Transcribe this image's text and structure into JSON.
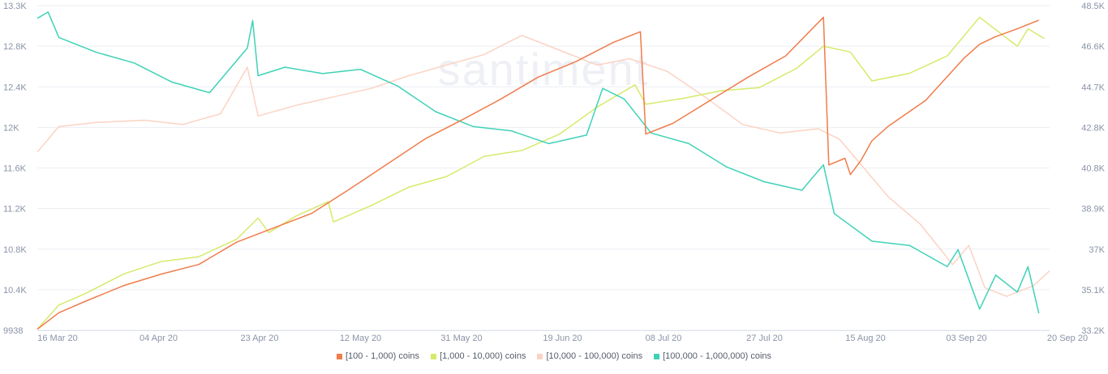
{
  "watermark": "santiment",
  "chart_data": {
    "type": "line",
    "x_ticks": [
      "16 Mar 20",
      "04 Apr 20",
      "23 Apr 20",
      "12 May 20",
      "31 May 20",
      "19 Jun 20",
      "08 Jul 20",
      "27 Jul 20",
      "15 Aug 20",
      "03 Sep 20",
      "20 Sep 20"
    ],
    "x_range": [
      "2020-03-16",
      "2020-09-20"
    ],
    "left_axis": {
      "ticks": [
        "13.3K",
        "12.8K",
        "12.4K",
        "12K",
        "11.6K",
        "11.2K",
        "10.8K",
        "10.4K",
        "9938"
      ],
      "range": [
        9938,
        13300
      ]
    },
    "right_axis": {
      "ticks": [
        "48.5K",
        "46.6K",
        "44.7K",
        "42.8K",
        "40.8K",
        "38.9K",
        "37K",
        "35.1K",
        "33.2K"
      ],
      "range": [
        33200,
        48500
      ]
    },
    "grid": true,
    "legend_position": "bottom",
    "series": [
      {
        "name": "[100 - 1,000) coins",
        "color": "#f07c4b",
        "axis": "left",
        "points": [
          [
            "2020-03-16",
            9950
          ],
          [
            "2020-03-20",
            10120
          ],
          [
            "2020-03-25",
            10240
          ],
          [
            "2020-04-01",
            10400
          ],
          [
            "2020-04-08",
            10520
          ],
          [
            "2020-04-15",
            10620
          ],
          [
            "2020-04-22",
            10850
          ],
          [
            "2020-04-29",
            11000
          ],
          [
            "2020-05-06",
            11150
          ],
          [
            "2020-05-13",
            11400
          ],
          [
            "2020-05-20",
            11660
          ],
          [
            "2020-05-27",
            11920
          ],
          [
            "2020-06-03",
            12120
          ],
          [
            "2020-06-10",
            12330
          ],
          [
            "2020-06-17",
            12560
          ],
          [
            "2020-06-24",
            12720
          ],
          [
            "2020-07-01",
            12920
          ],
          [
            "2020-07-06",
            13030
          ],
          [
            "2020-07-07",
            11970
          ],
          [
            "2020-07-12",
            12080
          ],
          [
            "2020-07-19",
            12320
          ],
          [
            "2020-07-26",
            12560
          ],
          [
            "2020-08-02",
            12780
          ],
          [
            "2020-08-09",
            13180
          ],
          [
            "2020-08-10",
            11650
          ],
          [
            "2020-08-13",
            11720
          ],
          [
            "2020-08-14",
            11550
          ],
          [
            "2020-08-16",
            11700
          ],
          [
            "2020-08-18",
            11900
          ],
          [
            "2020-08-21",
            12050
          ],
          [
            "2020-08-28",
            12320
          ],
          [
            "2020-09-04",
            12750
          ],
          [
            "2020-09-07",
            12900
          ],
          [
            "2020-09-10",
            12980
          ],
          [
            "2020-09-14",
            13060
          ],
          [
            "2020-09-18",
            13150
          ]
        ]
      },
      {
        "name": "[1,000 - 10,000) coins",
        "color": "#d6ea6a",
        "axis": "left",
        "points": [
          [
            "2020-03-16",
            9950
          ],
          [
            "2020-03-20",
            10200
          ],
          [
            "2020-03-25",
            10320
          ],
          [
            "2020-04-01",
            10520
          ],
          [
            "2020-04-08",
            10650
          ],
          [
            "2020-04-15",
            10700
          ],
          [
            "2020-04-22",
            10880
          ],
          [
            "2020-04-26",
            11100
          ],
          [
            "2020-04-28",
            10950
          ],
          [
            "2020-05-03",
            11120
          ],
          [
            "2020-05-09",
            11270
          ],
          [
            "2020-05-10",
            11060
          ],
          [
            "2020-05-17",
            11230
          ],
          [
            "2020-05-24",
            11420
          ],
          [
            "2020-05-31",
            11530
          ],
          [
            "2020-06-07",
            11740
          ],
          [
            "2020-06-14",
            11800
          ],
          [
            "2020-06-21",
            11970
          ],
          [
            "2020-06-28",
            12250
          ],
          [
            "2020-07-05",
            12480
          ],
          [
            "2020-07-07",
            12280
          ],
          [
            "2020-07-14",
            12340
          ],
          [
            "2020-07-21",
            12420
          ],
          [
            "2020-07-28",
            12450
          ],
          [
            "2020-08-04",
            12650
          ],
          [
            "2020-08-09",
            12880
          ],
          [
            "2020-08-14",
            12820
          ],
          [
            "2020-08-18",
            12520
          ],
          [
            "2020-08-25",
            12600
          ],
          [
            "2020-09-01",
            12780
          ],
          [
            "2020-09-07",
            13180
          ],
          [
            "2020-09-14",
            12880
          ],
          [
            "2020-09-16",
            13060
          ],
          [
            "2020-09-19",
            12960
          ]
        ]
      },
      {
        "name": "[10,000 - 100,000) coins",
        "color": "#fbd3c3",
        "axis": "right",
        "points": [
          [
            "2020-03-16",
            41600
          ],
          [
            "2020-03-20",
            42800
          ],
          [
            "2020-03-27",
            43000
          ],
          [
            "2020-04-05",
            43100
          ],
          [
            "2020-04-12",
            42900
          ],
          [
            "2020-04-19",
            43400
          ],
          [
            "2020-04-24",
            45600
          ],
          [
            "2020-04-26",
            43300
          ],
          [
            "2020-05-03",
            43800
          ],
          [
            "2020-05-10",
            44200
          ],
          [
            "2020-05-17",
            44600
          ],
          [
            "2020-05-24",
            45200
          ],
          [
            "2020-05-31",
            45700
          ],
          [
            "2020-06-07",
            46200
          ],
          [
            "2020-06-14",
            47100
          ],
          [
            "2020-06-21",
            46400
          ],
          [
            "2020-06-28",
            45700
          ],
          [
            "2020-07-04",
            46000
          ],
          [
            "2020-07-11",
            45400
          ],
          [
            "2020-07-18",
            44200
          ],
          [
            "2020-07-25",
            42900
          ],
          [
            "2020-08-01",
            42500
          ],
          [
            "2020-08-08",
            42700
          ],
          [
            "2020-08-12",
            42200
          ],
          [
            "2020-08-16",
            41000
          ],
          [
            "2020-08-21",
            39500
          ],
          [
            "2020-08-27",
            38200
          ],
          [
            "2020-09-02",
            36300
          ],
          [
            "2020-09-05",
            37200
          ],
          [
            "2020-09-08",
            35200
          ],
          [
            "2020-09-12",
            34800
          ],
          [
            "2020-09-17",
            35300
          ],
          [
            "2020-09-20",
            36000
          ]
        ]
      },
      {
        "name": "[100,000  - 1,000,000) coins",
        "color": "#3fd2b7",
        "axis": "right",
        "points": [
          [
            "2020-03-16",
            47900
          ],
          [
            "2020-03-18",
            48200
          ],
          [
            "2020-03-20",
            47000
          ],
          [
            "2020-03-27",
            46300
          ],
          [
            "2020-04-03",
            45800
          ],
          [
            "2020-04-10",
            44900
          ],
          [
            "2020-04-17",
            44400
          ],
          [
            "2020-04-24",
            46500
          ],
          [
            "2020-04-25",
            47800
          ],
          [
            "2020-04-26",
            45200
          ],
          [
            "2020-05-01",
            45600
          ],
          [
            "2020-05-08",
            45300
          ],
          [
            "2020-05-15",
            45500
          ],
          [
            "2020-05-22",
            44700
          ],
          [
            "2020-05-29",
            43500
          ],
          [
            "2020-06-05",
            42800
          ],
          [
            "2020-06-12",
            42600
          ],
          [
            "2020-06-19",
            42000
          ],
          [
            "2020-06-26",
            42400
          ],
          [
            "2020-06-29",
            44600
          ],
          [
            "2020-07-03",
            44100
          ],
          [
            "2020-07-08",
            42500
          ],
          [
            "2020-07-15",
            42000
          ],
          [
            "2020-07-22",
            40900
          ],
          [
            "2020-07-29",
            40200
          ],
          [
            "2020-08-05",
            39800
          ],
          [
            "2020-08-09",
            41000
          ],
          [
            "2020-08-11",
            38700
          ],
          [
            "2020-08-18",
            37400
          ],
          [
            "2020-08-25",
            37200
          ],
          [
            "2020-09-01",
            36200
          ],
          [
            "2020-09-03",
            37000
          ],
          [
            "2020-09-07",
            34200
          ],
          [
            "2020-09-10",
            35800
          ],
          [
            "2020-09-14",
            35000
          ],
          [
            "2020-09-16",
            36200
          ],
          [
            "2020-09-18",
            34000
          ]
        ]
      }
    ]
  }
}
